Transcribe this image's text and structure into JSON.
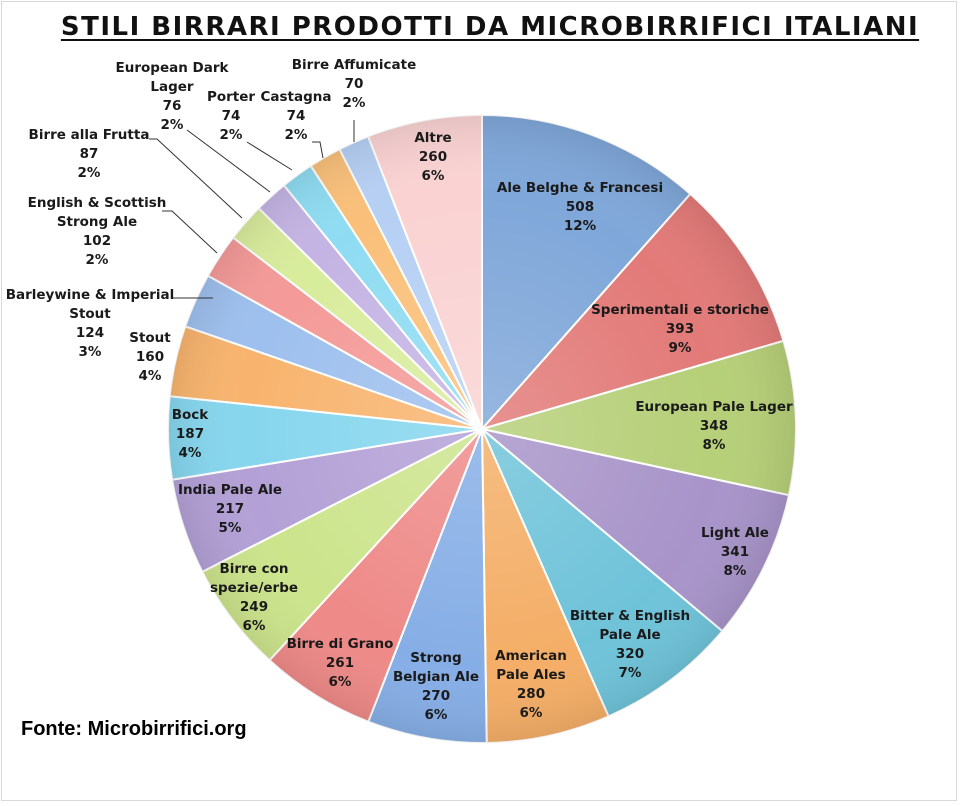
{
  "chart_data": {
    "type": "pie",
    "title": "STILI BIRRARI PRODOTTI DA MICROBIRRIFICI ITALIANI",
    "slices": [
      {
        "name": "Ale Belghe & Francesi",
        "value": 508,
        "percent": "12%",
        "color": "#7fa7d9"
      },
      {
        "name": "Sperimentali e storiche",
        "value": 393,
        "percent": "9%",
        "color": "#e27a78"
      },
      {
        "name": "European Pale Lager",
        "value": 348,
        "percent": "8%",
        "color": "#b6cf78"
      },
      {
        "name": "Light Ale",
        "value": 341,
        "percent": "8%",
        "color": "#a894c9"
      },
      {
        "name": "Bitter & English Pale Ale",
        "value": 320,
        "percent": "7%",
        "color": "#6fc3d9"
      },
      {
        "name": "American Pale Ales",
        "value": 280,
        "percent": "6%",
        "color": "#f4ae67"
      },
      {
        "name": "Strong Belgian Ale",
        "value": 270,
        "percent": "6%",
        "color": "#86aee6"
      },
      {
        "name": "Birre di Grano",
        "value": 261,
        "percent": "6%",
        "color": "#ee8a88"
      },
      {
        "name": "Birre con spezie/erbe",
        "value": 249,
        "percent": "6%",
        "color": "#cce48c"
      },
      {
        "name": "India Pale Ale",
        "value": 217,
        "percent": "5%",
        "color": "#b3a0d6"
      },
      {
        "name": "Bock",
        "value": 187,
        "percent": "4%",
        "color": "#86d6ee"
      },
      {
        "name": "Stout",
        "value": 160,
        "percent": "4%",
        "color": "#f8b46e"
      },
      {
        "name": "Barleywine & Imperial Stout",
        "value": 124,
        "percent": "3%",
        "color": "#9ec0ee"
      },
      {
        "name": "English & Scottish Strong Ale",
        "value": 102,
        "percent": "2%",
        "color": "#f49a98"
      },
      {
        "name": "Birre alla Frutta",
        "value": 87,
        "percent": "2%",
        "color": "#d8ec9c"
      },
      {
        "name": "European Dark Lager",
        "value": 76,
        "percent": "2%",
        "color": "#c4b4e4"
      },
      {
        "name": "Porter",
        "value": 74,
        "percent": "2%",
        "color": "#8fdcf2"
      },
      {
        "name": "Castagna",
        "value": 74,
        "percent": "2%",
        "color": "#fac07a"
      },
      {
        "name": "Birre Affumicate",
        "value": 70,
        "percent": "2%",
        "color": "#b6d0f4"
      },
      {
        "name": "Altre",
        "value": 260,
        "percent": "6%",
        "color": "#fad2d2"
      }
    ],
    "legend": "none"
  },
  "source": "Fonte: Microbirrifici.org"
}
